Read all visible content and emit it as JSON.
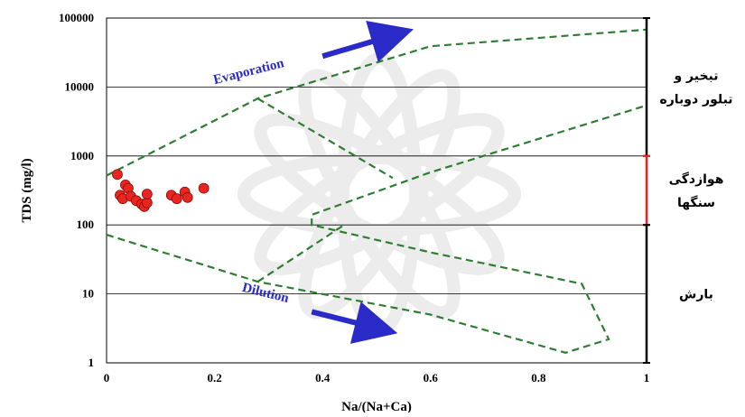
{
  "chart_data": {
    "type": "scatter",
    "title": "",
    "xlabel": "Na/(Na+Ca)",
    "ylabel": "TDS (mg/l)",
    "xlim": [
      0,
      1
    ],
    "ylim": [
      1,
      100000
    ],
    "y_scale": "log",
    "grid": "horizontal",
    "x_ticks": [
      0,
      0.2,
      0.4,
      0.6,
      0.8,
      1
    ],
    "x_tick_labels": [
      "0",
      "0.2",
      "0.4",
      "0.6",
      "0.8",
      "1"
    ],
    "y_ticks": [
      1,
      10,
      100,
      1000,
      10000,
      100000
    ],
    "y_tick_labels": [
      "1",
      "10",
      "100",
      "1000",
      "10000",
      "100000"
    ],
    "series": [
      {
        "color": "#e8261f",
        "points": [
          {
            "x": 0.02,
            "y": 540
          },
          {
            "x": 0.035,
            "y": 380
          },
          {
            "x": 0.04,
            "y": 340
          },
          {
            "x": 0.025,
            "y": 270
          },
          {
            "x": 0.03,
            "y": 240
          },
          {
            "x": 0.045,
            "y": 260
          },
          {
            "x": 0.055,
            "y": 225
          },
          {
            "x": 0.065,
            "y": 200
          },
          {
            "x": 0.07,
            "y": 185
          },
          {
            "x": 0.075,
            "y": 210
          },
          {
            "x": 0.075,
            "y": 280
          },
          {
            "x": 0.12,
            "y": 270
          },
          {
            "x": 0.13,
            "y": 240
          },
          {
            "x": 0.145,
            "y": 300
          },
          {
            "x": 0.15,
            "y": 250
          },
          {
            "x": 0.18,
            "y": 340
          }
        ]
      }
    ],
    "boomerang_color": "#2e7d32",
    "boomerang_lines": [
      [
        [
          0,
          520
        ],
        [
          0.28,
          6800
        ],
        [
          0.6,
          39000
        ],
        [
          1,
          68000
        ]
      ],
      [
        [
          0,
          72
        ],
        [
          0.28,
          15
        ],
        [
          0.6,
          5
        ],
        [
          0.85,
          1.4
        ],
        [
          0.93,
          2.2
        ],
        [
          0.88,
          14
        ],
        [
          0.6,
          40
        ],
        [
          0.38,
          100
        ],
        [
          0.38,
          140
        ],
        [
          0.6,
          580
        ],
        [
          1,
          5400
        ]
      ],
      [
        [
          0.28,
          6800
        ],
        [
          0.53,
          480
        ]
      ],
      [
        [
          0.28,
          15
        ],
        [
          0.44,
          100
        ]
      ]
    ],
    "annotations": [
      {
        "text": "Evaporation",
        "x": 0.2,
        "y": 11000,
        "rotate": -14
      },
      {
        "text": "Dilution",
        "x": 0.25,
        "y": 11,
        "rotate": 14
      }
    ],
    "arrows": [
      {
        "from": [
          0.4,
          28000
        ],
        "to": [
          0.53,
          56000
        ]
      },
      {
        "from": [
          0.38,
          5.5
        ],
        "to": [
          0.5,
          3.2
        ]
      }
    ],
    "zones": [
      {
        "label_lines": [
          "تبخیر و",
          "تبلور دوباره"
        ],
        "y_from": 1000,
        "y_to": 100000,
        "color": "#000000"
      },
      {
        "label_lines": [
          "هوازدگی",
          "سنگها"
        ],
        "y_from": 100,
        "y_to": 1000,
        "color": "#e8261f"
      },
      {
        "label_lines": [
          "بارش"
        ],
        "y_from": 1,
        "y_to": 100,
        "color": "#000000"
      }
    ]
  }
}
